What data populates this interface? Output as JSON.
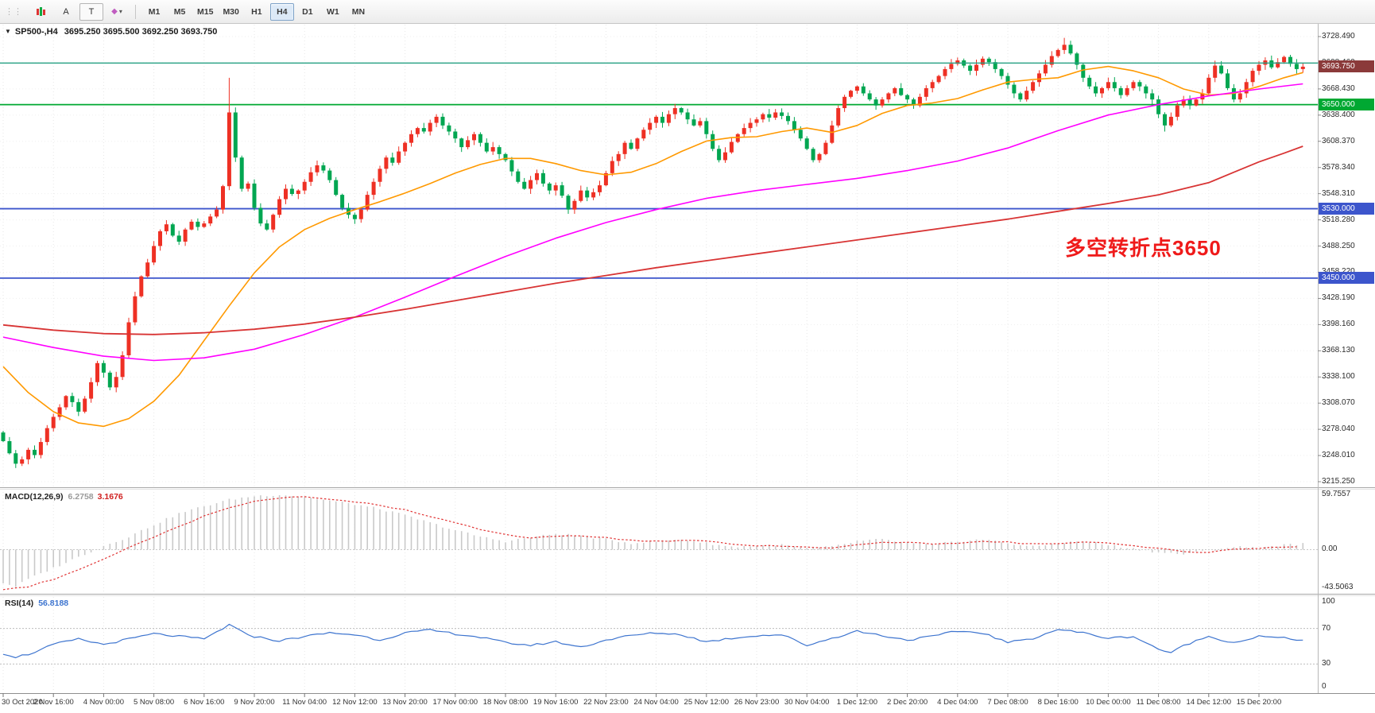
{
  "toolbar": {
    "buttons": [
      {
        "id": "chart-type"
      },
      {
        "id": "insert-text",
        "label": "A"
      },
      {
        "id": "insert-label",
        "label": "T"
      },
      {
        "id": "objects",
        "glyph": "◆",
        "caret": "▾"
      }
    ],
    "timeframes": [
      "M1",
      "M5",
      "M15",
      "M30",
      "H1",
      "H4",
      "D1",
      "W1",
      "MN"
    ],
    "active_timeframe": "H4"
  },
  "chart": {
    "header": {
      "dropdown_icon": "▼",
      "symbol": "SP500-,H4",
      "ohlc": "3695.250 3695.500 3692.250 3693.750"
    },
    "annotation": {
      "text": "多空转折点3650",
      "color": "#ef1a1a"
    },
    "price_axis": [
      "3728.490",
      "3698.460",
      "3668.430",
      "3638.400",
      "3608.370",
      "3578.340",
      "3548.310",
      "3518.280",
      "3488.250",
      "3458.220",
      "3428.190",
      "3398.160",
      "3368.130",
      "3338.100",
      "3308.070",
      "3278.040",
      "3248.010",
      "3215.250"
    ],
    "current_price": {
      "value": "3693.750",
      "price": 3693.75,
      "badge_color": "#8b3a3a",
      "line_color": "#26a083",
      "line_price": 3698
    },
    "hlines": [
      {
        "price": 3650,
        "label": "3650.000",
        "color": "#00a832"
      },
      {
        "price": 3530,
        "label": "3530.000",
        "color": "#3c55cc"
      },
      {
        "price": 3450,
        "label": "3450.000",
        "color": "#3c55cc"
      }
    ],
    "time_axis": [
      "30 Oct 2020",
      "2 Nov 16:00",
      "4 Nov 00:00",
      "5 Nov 08:00",
      "6 Nov 16:00",
      "9 Nov 20:00",
      "11 Nov 04:00",
      "12 Nov 12:00",
      "13 Nov 20:00",
      "17 Nov 00:00",
      "18 Nov 08:00",
      "19 Nov 16:00",
      "22 Nov 23:00",
      "24 Nov 04:00",
      "25 Nov 12:00",
      "26 Nov 23:00",
      "30 Nov 04:00",
      "1 Dec 12:00",
      "2 Dec 20:00",
      "4 Dec 04:00",
      "7 Dec 08:00",
      "8 Dec 16:00",
      "10 Dec 00:00",
      "11 Dec 08:00",
      "14 Dec 12:00",
      "15 Dec 20:00"
    ]
  },
  "chart_data": {
    "type": "candlestick",
    "symbol": "SP500-",
    "period": "H4",
    "price_max": 3728.49,
    "price_min": 3215.25,
    "first_open": 3272,
    "closes": [
      3262,
      3248,
      3236,
      3241,
      3252,
      3246,
      3261,
      3277,
      3290,
      3301,
      3314,
      3307,
      3296,
      3311,
      3330,
      3352,
      3341,
      3324,
      3336,
      3361,
      3399,
      3429,
      3452,
      3468,
      3487,
      3504,
      3512,
      3499,
      3492,
      3506,
      3515,
      3509,
      3513,
      3521,
      3529,
      3556,
      3641,
      3589,
      3553,
      3559,
      3531,
      3513,
      3506,
      3523,
      3541,
      3553,
      3547,
      3551,
      3561,
      3572,
      3580,
      3574,
      3563,
      3546,
      3531,
      3523,
      3518,
      3529,
      3546,
      3561,
      3576,
      3589,
      3583,
      3596,
      3606,
      3616,
      3623,
      3619,
      3629,
      3636,
      3626,
      3619,
      3611,
      3601,
      3609,
      3616,
      3606,
      3596,
      3601,
      3593,
      3586,
      3573,
      3561,
      3553,
      3563,
      3571,
      3559,
      3551,
      3557,
      3545,
      3529,
      3539,
      3551,
      3543,
      3549,
      3557,
      3571,
      3585,
      3593,
      3606,
      3599,
      3611,
      3621,
      3629,
      3636,
      3629,
      3639,
      3646,
      3641,
      3633,
      3626,
      3631,
      3616,
      3599,
      3586,
      3595,
      3607,
      3616,
      3623,
      3629,
      3633,
      3639,
      3635,
      3641,
      3637,
      3631,
      3621,
      3611,
      3599,
      3586,
      3593,
      3606,
      3626,
      3646,
      3659,
      3666,
      3671,
      3663,
      3656,
      3649,
      3656,
      3663,
      3669,
      3661,
      3656,
      3649,
      3659,
      3669,
      3676,
      3683,
      3691,
      3697,
      3701,
      3695,
      3689,
      3696,
      3703,
      3699,
      3691,
      3683,
      3673,
      3663,
      3656,
      3666,
      3676,
      3686,
      3696,
      3706,
      3713,
      3719,
      3709,
      3696,
      3681,
      3671,
      3663,
      3669,
      3676,
      3669,
      3661,
      3669,
      3676,
      3671,
      3663,
      3656,
      3639,
      3626,
      3636,
      3649,
      3656,
      3649,
      3656,
      3663,
      3681,
      3695,
      3686,
      3669,
      3656,
      3663,
      3676,
      3689,
      3696,
      3701,
      3693,
      3699,
      3705,
      3697,
      3691,
      3693.75
    ],
    "wick_overrides": {
      "2": {
        "low": 3231
      },
      "36": {
        "high": 3681
      },
      "169": {
        "high": 3727
      },
      "185": {
        "low": 3619
      }
    },
    "colors": {
      "bull": "#ee3024",
      "bear": "#00a651"
    },
    "ma_lines": [
      {
        "name": "ma-fast",
        "color": "#ff9900",
        "width": 1.6,
        "points": [
          [
            0,
            3348
          ],
          [
            4,
            3318
          ],
          [
            8,
            3296
          ],
          [
            12,
            3283
          ],
          [
            16,
            3279
          ],
          [
            20,
            3288
          ],
          [
            24,
            3308
          ],
          [
            28,
            3338
          ],
          [
            32,
            3378
          ],
          [
            36,
            3418
          ],
          [
            40,
            3456
          ],
          [
            44,
            3486
          ],
          [
            48,
            3506
          ],
          [
            52,
            3519
          ],
          [
            56,
            3529
          ],
          [
            60,
            3538
          ],
          [
            64,
            3548
          ],
          [
            68,
            3559
          ],
          [
            72,
            3571
          ],
          [
            76,
            3581
          ],
          [
            80,
            3588
          ],
          [
            84,
            3588
          ],
          [
            88,
            3582
          ],
          [
            92,
            3574
          ],
          [
            96,
            3569
          ],
          [
            100,
            3572
          ],
          [
            104,
            3582
          ],
          [
            108,
            3596
          ],
          [
            112,
            3608
          ],
          [
            116,
            3612
          ],
          [
            120,
            3613
          ],
          [
            124,
            3619
          ],
          [
            128,
            3623
          ],
          [
            132,
            3618
          ],
          [
            136,
            3626
          ],
          [
            140,
            3640
          ],
          [
            144,
            3649
          ],
          [
            148,
            3652
          ],
          [
            152,
            3657
          ],
          [
            156,
            3667
          ],
          [
            160,
            3676
          ],
          [
            164,
            3679
          ],
          [
            168,
            3681
          ],
          [
            172,
            3690
          ],
          [
            176,
            3694
          ],
          [
            180,
            3689
          ],
          [
            184,
            3681
          ],
          [
            188,
            3668
          ],
          [
            192,
            3661
          ],
          [
            196,
            3663
          ],
          [
            200,
            3671
          ],
          [
            204,
            3681
          ],
          [
            207,
            3687
          ]
        ]
      },
      {
        "name": "ma-medium",
        "color": "#ff00ff",
        "width": 1.6,
        "points": [
          [
            0,
            3382
          ],
          [
            8,
            3370
          ],
          [
            16,
            3360
          ],
          [
            24,
            3355
          ],
          [
            32,
            3358
          ],
          [
            40,
            3368
          ],
          [
            48,
            3385
          ],
          [
            56,
            3405
          ],
          [
            64,
            3428
          ],
          [
            72,
            3452
          ],
          [
            80,
            3475
          ],
          [
            88,
            3496
          ],
          [
            96,
            3514
          ],
          [
            104,
            3529
          ],
          [
            112,
            3542
          ],
          [
            120,
            3551
          ],
          [
            128,
            3558
          ],
          [
            136,
            3565
          ],
          [
            144,
            3574
          ],
          [
            152,
            3585
          ],
          [
            160,
            3600
          ],
          [
            168,
            3620
          ],
          [
            176,
            3638
          ],
          [
            184,
            3650
          ],
          [
            192,
            3660
          ],
          [
            200,
            3668
          ],
          [
            207,
            3674
          ]
        ]
      },
      {
        "name": "ma-slow",
        "color": "#d83434",
        "width": 1.8,
        "points": [
          [
            0,
            3396
          ],
          [
            8,
            3390
          ],
          [
            16,
            3386
          ],
          [
            24,
            3385
          ],
          [
            32,
            3387
          ],
          [
            40,
            3391
          ],
          [
            48,
            3397
          ],
          [
            56,
            3405
          ],
          [
            64,
            3414
          ],
          [
            72,
            3424
          ],
          [
            80,
            3434
          ],
          [
            88,
            3444
          ],
          [
            96,
            3453
          ],
          [
            104,
            3462
          ],
          [
            112,
            3470
          ],
          [
            120,
            3478
          ],
          [
            128,
            3486
          ],
          [
            136,
            3494
          ],
          [
            144,
            3502
          ],
          [
            152,
            3510
          ],
          [
            160,
            3518
          ],
          [
            168,
            3527
          ],
          [
            176,
            3536
          ],
          [
            184,
            3546
          ],
          [
            192,
            3560
          ],
          [
            196,
            3572
          ],
          [
            200,
            3584
          ],
          [
            204,
            3594
          ],
          [
            207,
            3602
          ]
        ]
      }
    ]
  },
  "macd": {
    "title": "MACD(12,26,9)",
    "main_value": "6.2758",
    "signal_value": "3.1676",
    "axis": [
      "59.7557",
      "0.00",
      "-43.5063"
    ],
    "max": 59.7557,
    "min": -43.5063,
    "hist_color": "#c9c9c9",
    "signal_color": "#e03030",
    "hist_points": [
      [
        0,
        -36
      ],
      [
        2,
        -40
      ],
      [
        4,
        -32
      ],
      [
        8,
        -20
      ],
      [
        12,
        -8
      ],
      [
        16,
        4
      ],
      [
        20,
        14
      ],
      [
        24,
        27
      ],
      [
        28,
        39
      ],
      [
        32,
        47
      ],
      [
        36,
        54
      ],
      [
        40,
        58
      ],
      [
        44,
        59.5
      ],
      [
        48,
        57
      ],
      [
        52,
        53
      ],
      [
        56,
        49
      ],
      [
        60,
        44
      ],
      [
        64,
        37
      ],
      [
        68,
        29
      ],
      [
        72,
        21
      ],
      [
        76,
        14
      ],
      [
        80,
        9
      ],
      [
        84,
        13
      ],
      [
        88,
        17
      ],
      [
        92,
        15
      ],
      [
        96,
        11
      ],
      [
        100,
        7
      ],
      [
        104,
        9
      ],
      [
        108,
        11
      ],
      [
        112,
        7
      ],
      [
        116,
        3
      ],
      [
        120,
        4
      ],
      [
        124,
        5
      ],
      [
        128,
        1
      ],
      [
        132,
        3
      ],
      [
        136,
        9
      ],
      [
        140,
        11
      ],
      [
        144,
        7
      ],
      [
        148,
        5
      ],
      [
        152,
        9
      ],
      [
        156,
        11
      ],
      [
        160,
        7
      ],
      [
        164,
        3
      ],
      [
        168,
        7
      ],
      [
        172,
        9
      ],
      [
        176,
        5
      ],
      [
        180,
        1
      ],
      [
        184,
        -3
      ],
      [
        188,
        -5
      ],
      [
        192,
        -1
      ],
      [
        196,
        3
      ],
      [
        200,
        2
      ],
      [
        204,
        5
      ],
      [
        207,
        6.28
      ]
    ],
    "signal_points": [
      [
        0,
        -43
      ],
      [
        4,
        -40
      ],
      [
        8,
        -32
      ],
      [
        12,
        -22
      ],
      [
        16,
        -10
      ],
      [
        20,
        2
      ],
      [
        24,
        13
      ],
      [
        28,
        25
      ],
      [
        32,
        36
      ],
      [
        36,
        45
      ],
      [
        40,
        52
      ],
      [
        44,
        56
      ],
      [
        48,
        57.5
      ],
      [
        52,
        55
      ],
      [
        56,
        52
      ],
      [
        60,
        48
      ],
      [
        64,
        43
      ],
      [
        68,
        36
      ],
      [
        72,
        29
      ],
      [
        76,
        22
      ],
      [
        80,
        16
      ],
      [
        84,
        13
      ],
      [
        88,
        14
      ],
      [
        92,
        15
      ],
      [
        96,
        13
      ],
      [
        100,
        10
      ],
      [
        104,
        9
      ],
      [
        108,
        10
      ],
      [
        112,
        9
      ],
      [
        116,
        6
      ],
      [
        120,
        4
      ],
      [
        124,
        4
      ],
      [
        128,
        3
      ],
      [
        132,
        2
      ],
      [
        136,
        5
      ],
      [
        140,
        8
      ],
      [
        144,
        8
      ],
      [
        148,
        6
      ],
      [
        152,
        7
      ],
      [
        156,
        9
      ],
      [
        160,
        8
      ],
      [
        164,
        6
      ],
      [
        168,
        6
      ],
      [
        172,
        8
      ],
      [
        176,
        7
      ],
      [
        180,
        4
      ],
      [
        184,
        1
      ],
      [
        188,
        -2
      ],
      [
        192,
        -3
      ],
      [
        196,
        0
      ],
      [
        200,
        1
      ],
      [
        204,
        3
      ],
      [
        207,
        3.17
      ]
    ]
  },
  "rsi": {
    "title": "RSI(14)",
    "value": "56.8188",
    "axis": [
      "100",
      "70",
      "30",
      "0"
    ],
    "levels": [
      70,
      30
    ],
    "color": "#3d74cf",
    "points": [
      [
        0,
        42
      ],
      [
        2,
        38
      ],
      [
        4,
        41
      ],
      [
        6,
        46
      ],
      [
        8,
        52
      ],
      [
        12,
        58
      ],
      [
        16,
        52
      ],
      [
        20,
        58
      ],
      [
        24,
        64
      ],
      [
        28,
        61
      ],
      [
        32,
        58
      ],
      [
        36,
        74
      ],
      [
        38,
        66
      ],
      [
        40,
        61
      ],
      [
        44,
        56
      ],
      [
        48,
        61
      ],
      [
        52,
        65
      ],
      [
        56,
        63
      ],
      [
        60,
        57
      ],
      [
        64,
        65
      ],
      [
        68,
        68
      ],
      [
        72,
        64
      ],
      [
        76,
        60
      ],
      [
        80,
        54
      ],
      [
        84,
        51
      ],
      [
        88,
        55
      ],
      [
        92,
        49
      ],
      [
        96,
        57
      ],
      [
        100,
        62
      ],
      [
        104,
        65
      ],
      [
        108,
        63
      ],
      [
        112,
        55
      ],
      [
        116,
        59
      ],
      [
        120,
        62
      ],
      [
        124,
        63
      ],
      [
        128,
        51
      ],
      [
        132,
        59
      ],
      [
        136,
        67
      ],
      [
        140,
        62
      ],
      [
        144,
        57
      ],
      [
        148,
        61
      ],
      [
        152,
        67
      ],
      [
        156,
        65
      ],
      [
        160,
        54
      ],
      [
        164,
        59
      ],
      [
        168,
        69
      ],
      [
        172,
        65
      ],
      [
        176,
        59
      ],
      [
        180,
        61
      ],
      [
        184,
        47
      ],
      [
        186,
        42
      ],
      [
        188,
        51
      ],
      [
        192,
        61
      ],
      [
        196,
        54
      ],
      [
        200,
        61
      ],
      [
        204,
        59
      ],
      [
        207,
        56.8
      ]
    ]
  }
}
